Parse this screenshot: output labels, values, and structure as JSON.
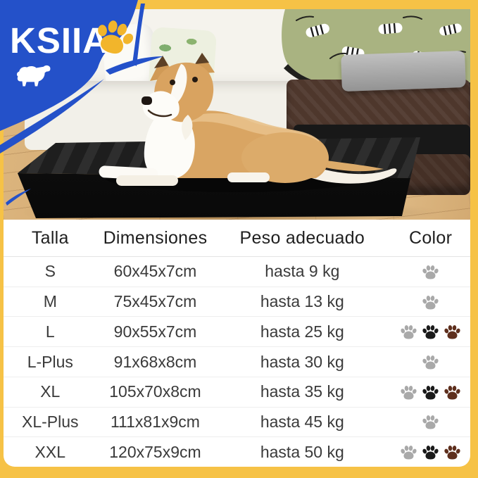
{
  "brand": {
    "name": "KSIIA"
  },
  "colors": {
    "frame_yellow": "#F6C246",
    "brand_blue": "#2451C9",
    "logo_paw_yellow": "#F2B52B",
    "paw_gray": "#A9A9A9",
    "paw_black": "#1A1A1A",
    "paw_brown": "#5E2F1D"
  },
  "icons": {
    "logo_paw": "paw-icon",
    "brand_dog": "dog-silhouette-icon",
    "color_swatch": "paw-icon"
  },
  "size_table": {
    "headers": [
      "Talla",
      "Dimensiones",
      "Peso adecuado",
      "Color"
    ],
    "rows": [
      {
        "talla": "S",
        "dimensiones": "60x45x7cm",
        "peso": "hasta 9 kg",
        "colors": [
          "gray"
        ]
      },
      {
        "talla": "M",
        "dimensiones": "75x45x7cm",
        "peso": "hasta 13 kg",
        "colors": [
          "gray"
        ]
      },
      {
        "talla": "L",
        "dimensiones": "90x55x7cm",
        "peso": "hasta 25 kg",
        "colors": [
          "gray",
          "black",
          "brown"
        ]
      },
      {
        "talla": "L-Plus",
        "dimensiones": "91x68x8cm",
        "peso": "hasta 30 kg",
        "colors": [
          "gray"
        ]
      },
      {
        "talla": "XL",
        "dimensiones": "105x70x8cm",
        "peso": "hasta 35 kg",
        "colors": [
          "gray",
          "black",
          "brown"
        ]
      },
      {
        "talla": "XL-Plus",
        "dimensiones": "111x81x9cm",
        "peso": "hasta 45 kg",
        "colors": [
          "gray"
        ]
      },
      {
        "talla": "XXL",
        "dimensiones": "120x75x9cm",
        "peso": "hasta 50 kg",
        "colors": [
          "gray",
          "black",
          "brown"
        ]
      }
    ]
  }
}
